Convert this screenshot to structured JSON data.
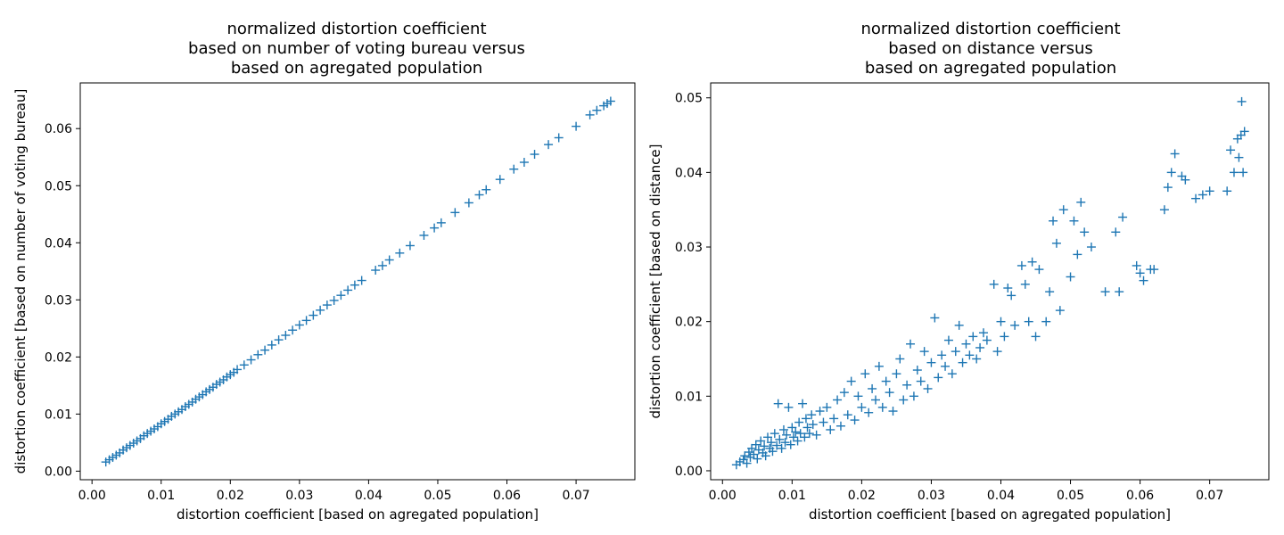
{
  "charts": [
    {
      "title_lines": [
        "normalized distortion coefficient",
        "based on number of voting bureau versus",
        "based on agregated population"
      ],
      "xlabel": "distortion coefficient [based on agregated population]",
      "ylabel": "distortion coefficient [based on number of voting bureau]",
      "xticks": [
        "0.00",
        "0.01",
        "0.02",
        "0.03",
        "0.04",
        "0.05",
        "0.06",
        "0.07"
      ],
      "yticks": [
        "0.00",
        "0.01",
        "0.02",
        "0.03",
        "0.04",
        "0.05",
        "0.06"
      ]
    },
    {
      "title_lines": [
        "normalized distortion coefficient",
        "based on distance versus",
        "based on agregated population"
      ],
      "xlabel": "distortion coefficient [based on agregated population]",
      "ylabel": "distortion coefficient [based on distance]",
      "xticks": [
        "0.00",
        "0.01",
        "0.02",
        "0.03",
        "0.04",
        "0.05",
        "0.06",
        "0.07"
      ],
      "yticks": [
        "0.00",
        "0.01",
        "0.02",
        "0.03",
        "0.04",
        "0.05"
      ]
    }
  ],
  "chart_data": [
    {
      "type": "scatter",
      "marker": "+",
      "color": "#1f77b4",
      "xlim": [
        -0.0017,
        0.0785
      ],
      "ylim": [
        -0.0015,
        0.068
      ],
      "xticks": [
        0,
        0.01,
        0.02,
        0.03,
        0.04,
        0.05,
        0.06,
        0.07
      ],
      "yticks": [
        0,
        0.01,
        0.02,
        0.03,
        0.04,
        0.05,
        0.06
      ],
      "grid": false,
      "points": [
        [
          0.002,
          0.0016
        ],
        [
          0.0025,
          0.002
        ],
        [
          0.003,
          0.0024
        ],
        [
          0.0035,
          0.0028
        ],
        [
          0.004,
          0.0032
        ],
        [
          0.0045,
          0.0037
        ],
        [
          0.005,
          0.0041
        ],
        [
          0.0055,
          0.0045
        ],
        [
          0.006,
          0.0049
        ],
        [
          0.0065,
          0.0053
        ],
        [
          0.007,
          0.0057
        ],
        [
          0.0075,
          0.0062
        ],
        [
          0.008,
          0.0066
        ],
        [
          0.0085,
          0.007
        ],
        [
          0.009,
          0.0074
        ],
        [
          0.0095,
          0.0078
        ],
        [
          0.01,
          0.0083
        ],
        [
          0.0105,
          0.0087
        ],
        [
          0.011,
          0.0091
        ],
        [
          0.0115,
          0.0096
        ],
        [
          0.012,
          0.01
        ],
        [
          0.0125,
          0.0104
        ],
        [
          0.013,
          0.0108
        ],
        [
          0.0135,
          0.0113
        ],
        [
          0.014,
          0.0117
        ],
        [
          0.0145,
          0.0121
        ],
        [
          0.015,
          0.0126
        ],
        [
          0.0155,
          0.013
        ],
        [
          0.016,
          0.0134
        ],
        [
          0.0165,
          0.0139
        ],
        [
          0.017,
          0.0143
        ],
        [
          0.0175,
          0.0147
        ],
        [
          0.018,
          0.0152
        ],
        [
          0.0185,
          0.0156
        ],
        [
          0.019,
          0.016
        ],
        [
          0.0195,
          0.0165
        ],
        [
          0.02,
          0.0169
        ],
        [
          0.0205,
          0.0173
        ],
        [
          0.021,
          0.0178
        ],
        [
          0.022,
          0.0186
        ],
        [
          0.023,
          0.0195
        ],
        [
          0.024,
          0.0204
        ],
        [
          0.025,
          0.0212
        ],
        [
          0.026,
          0.0221
        ],
        [
          0.027,
          0.023
        ],
        [
          0.028,
          0.0238
        ],
        [
          0.029,
          0.0247
        ],
        [
          0.03,
          0.0256
        ],
        [
          0.031,
          0.0264
        ],
        [
          0.032,
          0.0273
        ],
        [
          0.033,
          0.0282
        ],
        [
          0.034,
          0.0291
        ],
        [
          0.035,
          0.0299
        ],
        [
          0.036,
          0.0308
        ],
        [
          0.037,
          0.0317
        ],
        [
          0.038,
          0.0326
        ],
        [
          0.039,
          0.0334
        ],
        [
          0.041,
          0.0352
        ],
        [
          0.042,
          0.036
        ],
        [
          0.043,
          0.037
        ],
        [
          0.0445,
          0.0382
        ],
        [
          0.046,
          0.0395
        ],
        [
          0.048,
          0.0413
        ],
        [
          0.0495,
          0.0426
        ],
        [
          0.0505,
          0.0435
        ],
        [
          0.0525,
          0.0453
        ],
        [
          0.0545,
          0.047
        ],
        [
          0.056,
          0.0484
        ],
        [
          0.057,
          0.0493
        ],
        [
          0.059,
          0.0511
        ],
        [
          0.061,
          0.0529
        ],
        [
          0.0625,
          0.0541
        ],
        [
          0.064,
          0.0555
        ],
        [
          0.066,
          0.0572
        ],
        [
          0.0675,
          0.0584
        ],
        [
          0.07,
          0.0604
        ],
        [
          0.072,
          0.0624
        ],
        [
          0.073,
          0.0632
        ],
        [
          0.074,
          0.064
        ],
        [
          0.0745,
          0.0644
        ],
        [
          0.075,
          0.0648
        ]
      ]
    },
    {
      "type": "scatter",
      "marker": "+",
      "color": "#1f77b4",
      "xlim": [
        -0.0017,
        0.0785
      ],
      "ylim": [
        -0.0012,
        0.052
      ],
      "xticks": [
        0,
        0.01,
        0.02,
        0.03,
        0.04,
        0.05,
        0.06,
        0.07
      ],
      "yticks": [
        0,
        0.01,
        0.02,
        0.03,
        0.04,
        0.05
      ],
      "grid": false,
      "points": [
        [
          0.002,
          0.0008
        ],
        [
          0.0025,
          0.0012
        ],
        [
          0.003,
          0.0015
        ],
        [
          0.0032,
          0.002
        ],
        [
          0.0035,
          0.001
        ],
        [
          0.0038,
          0.0025
        ],
        [
          0.004,
          0.0018
        ],
        [
          0.0042,
          0.003
        ],
        [
          0.0045,
          0.0022
        ],
        [
          0.0048,
          0.0035
        ],
        [
          0.005,
          0.0016
        ],
        [
          0.0052,
          0.0028
        ],
        [
          0.0055,
          0.004
        ],
        [
          0.0058,
          0.0024
        ],
        [
          0.006,
          0.0033
        ],
        [
          0.0062,
          0.002
        ],
        [
          0.0065,
          0.0045
        ],
        [
          0.0068,
          0.003
        ],
        [
          0.007,
          0.0038
        ],
        [
          0.0072,
          0.0026
        ],
        [
          0.0075,
          0.005
        ],
        [
          0.0078,
          0.0034
        ],
        [
          0.008,
          0.009
        ],
        [
          0.0082,
          0.0042
        ],
        [
          0.0085,
          0.003
        ],
        [
          0.0088,
          0.0055
        ],
        [
          0.009,
          0.0038
        ],
        [
          0.0092,
          0.0048
        ],
        [
          0.0095,
          0.0085
        ],
        [
          0.0098,
          0.0035
        ],
        [
          0.01,
          0.0058
        ],
        [
          0.0102,
          0.0045
        ],
        [
          0.0105,
          0.0052
        ],
        [
          0.0108,
          0.004
        ],
        [
          0.011,
          0.0065
        ],
        [
          0.0112,
          0.005
        ],
        [
          0.0115,
          0.009
        ],
        [
          0.0118,
          0.0045
        ],
        [
          0.012,
          0.007
        ],
        [
          0.0122,
          0.0058
        ],
        [
          0.0125,
          0.005
        ],
        [
          0.0128,
          0.0075
        ],
        [
          0.013,
          0.0062
        ],
        [
          0.0135,
          0.0048
        ],
        [
          0.014,
          0.008
        ],
        [
          0.0145,
          0.0065
        ],
        [
          0.015,
          0.0085
        ],
        [
          0.0155,
          0.0055
        ],
        [
          0.016,
          0.007
        ],
        [
          0.0165,
          0.0095
        ],
        [
          0.017,
          0.006
        ],
        [
          0.0175,
          0.0105
        ],
        [
          0.018,
          0.0075
        ],
        [
          0.0185,
          0.012
        ],
        [
          0.019,
          0.0068
        ],
        [
          0.0195,
          0.01
        ],
        [
          0.02,
          0.0085
        ],
        [
          0.0205,
          0.013
        ],
        [
          0.021,
          0.0078
        ],
        [
          0.0215,
          0.011
        ],
        [
          0.022,
          0.0095
        ],
        [
          0.0225,
          0.014
        ],
        [
          0.023,
          0.0085
        ],
        [
          0.0235,
          0.012
        ],
        [
          0.024,
          0.0105
        ],
        [
          0.0245,
          0.008
        ],
        [
          0.025,
          0.013
        ],
        [
          0.0255,
          0.015
        ],
        [
          0.026,
          0.0095
        ],
        [
          0.0265,
          0.0115
        ],
        [
          0.027,
          0.017
        ],
        [
          0.0275,
          0.01
        ],
        [
          0.028,
          0.0135
        ],
        [
          0.0285,
          0.012
        ],
        [
          0.029,
          0.016
        ],
        [
          0.0295,
          0.011
        ],
        [
          0.03,
          0.0145
        ],
        [
          0.0305,
          0.0205
        ],
        [
          0.031,
          0.0125
        ],
        [
          0.0315,
          0.0155
        ],
        [
          0.032,
          0.014
        ],
        [
          0.0325,
          0.0175
        ],
        [
          0.033,
          0.013
        ],
        [
          0.0335,
          0.016
        ],
        [
          0.034,
          0.0195
        ],
        [
          0.0345,
          0.0145
        ],
        [
          0.035,
          0.017
        ],
        [
          0.0355,
          0.0155
        ],
        [
          0.036,
          0.018
        ],
        [
          0.0365,
          0.015
        ],
        [
          0.037,
          0.0165
        ],
        [
          0.0375,
          0.0185
        ],
        [
          0.038,
          0.0175
        ],
        [
          0.039,
          0.025
        ],
        [
          0.0395,
          0.016
        ],
        [
          0.04,
          0.02
        ],
        [
          0.0405,
          0.018
        ],
        [
          0.041,
          0.0245
        ],
        [
          0.0415,
          0.0235
        ],
        [
          0.042,
          0.0195
        ],
        [
          0.043,
          0.0275
        ],
        [
          0.0435,
          0.025
        ],
        [
          0.044,
          0.02
        ],
        [
          0.0445,
          0.028
        ],
        [
          0.045,
          0.018
        ],
        [
          0.0455,
          0.027
        ],
        [
          0.0465,
          0.02
        ],
        [
          0.047,
          0.024
        ],
        [
          0.0475,
          0.0335
        ],
        [
          0.048,
          0.0305
        ],
        [
          0.0485,
          0.0215
        ],
        [
          0.049,
          0.035
        ],
        [
          0.05,
          0.026
        ],
        [
          0.0505,
          0.0335
        ],
        [
          0.051,
          0.029
        ],
        [
          0.0515,
          0.036
        ],
        [
          0.052,
          0.032
        ],
        [
          0.053,
          0.03
        ],
        [
          0.055,
          0.024
        ],
        [
          0.0565,
          0.032
        ],
        [
          0.057,
          0.024
        ],
        [
          0.0575,
          0.034
        ],
        [
          0.0595,
          0.0275
        ],
        [
          0.06,
          0.0265
        ],
        [
          0.0605,
          0.0255
        ],
        [
          0.0615,
          0.027
        ],
        [
          0.062,
          0.027
        ],
        [
          0.0635,
          0.035
        ],
        [
          0.064,
          0.038
        ],
        [
          0.0645,
          0.04
        ],
        [
          0.065,
          0.0425
        ],
        [
          0.066,
          0.0395
        ],
        [
          0.0665,
          0.039
        ],
        [
          0.068,
          0.0365
        ],
        [
          0.069,
          0.037
        ],
        [
          0.07,
          0.0375
        ],
        [
          0.0725,
          0.0375
        ],
        [
          0.073,
          0.043
        ],
        [
          0.0735,
          0.04
        ],
        [
          0.074,
          0.0445
        ],
        [
          0.0742,
          0.042
        ],
        [
          0.0745,
          0.045
        ],
        [
          0.0748,
          0.04
        ],
        [
          0.0746,
          0.0495
        ],
        [
          0.075,
          0.0455
        ]
      ]
    }
  ]
}
